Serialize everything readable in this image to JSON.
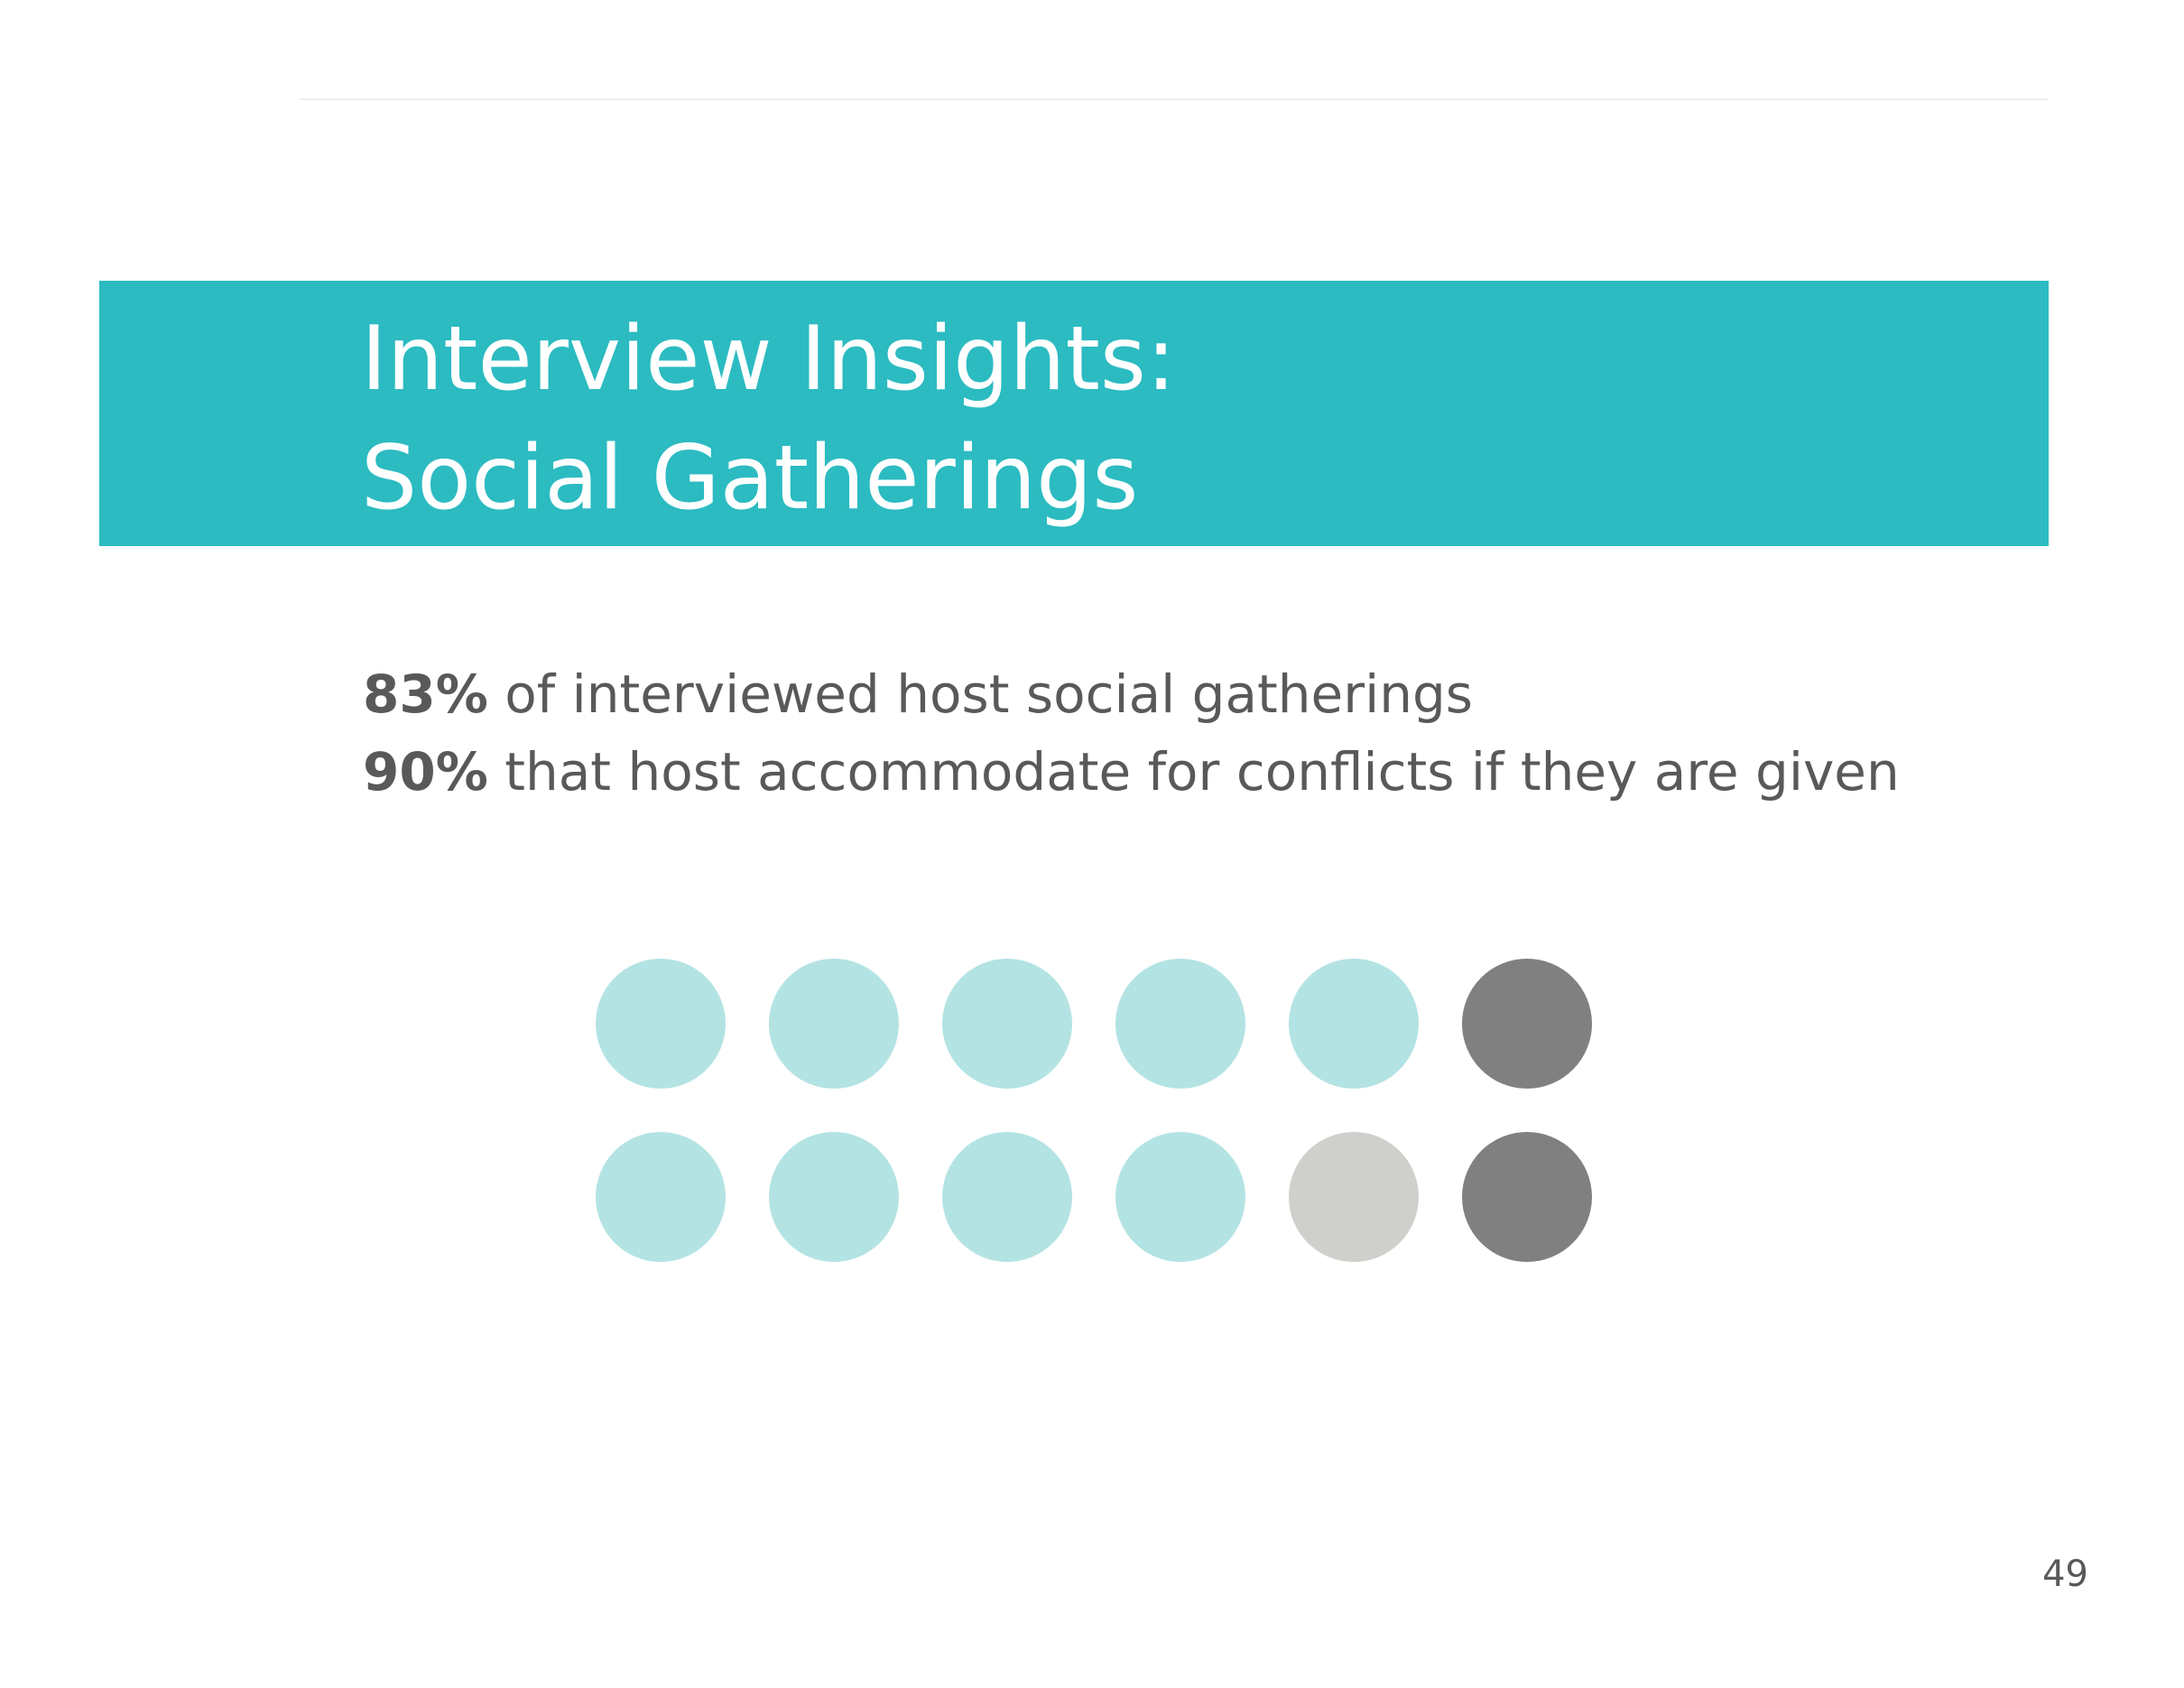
{
  "slide": {
    "title_line_1": "Interview Insights:",
    "title_line_2": "Social Gatherings",
    "page_number": "49"
  },
  "stats": [
    {
      "number": "83%",
      "text": " of interviewed host social gatherings"
    },
    {
      "number": "90%",
      "text": " that host accommodate for conflicts if they are given"
    }
  ],
  "colors": {
    "title_band": "#2bbbc1",
    "dot_light_teal": "#b4e3e3",
    "dot_light_gray": "#cfcfcc",
    "dot_dark_gray": "#808080",
    "body_text": "#595959"
  },
  "dot_grid": {
    "columns": 6,
    "dots": [
      "light_teal",
      "light_teal",
      "light_teal",
      "light_teal",
      "light_teal",
      "dark_gray",
      "light_teal",
      "light_teal",
      "light_teal",
      "light_teal",
      "light_gray",
      "dark_gray"
    ]
  }
}
